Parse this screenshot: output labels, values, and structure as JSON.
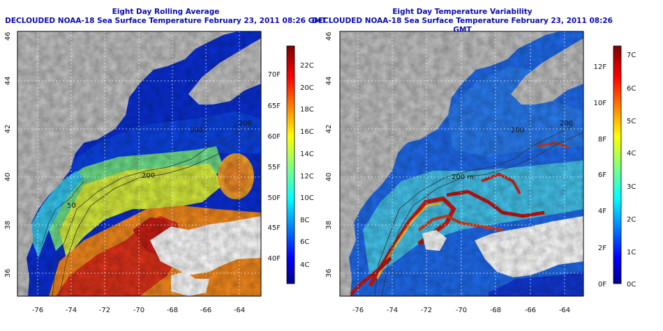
{
  "panels": [
    {
      "title_line1": "Eight Day Rolling Average",
      "title_line2": "DECLOUDED NOAA-18 Sea Surface Temperature February 23, 2011 08:26 GMT",
      "lon_ticks": [
        "-76",
        "-74",
        "-72",
        "-70",
        "-68",
        "-66",
        "-64"
      ],
      "lat_ticks": [
        "36",
        "38",
        "40",
        "42",
        "44",
        "46"
      ],
      "contour_labels": [
        "50",
        "200",
        "200",
        "200"
      ],
      "colorbar": {
        "celsius": [
          "4C",
          "6C",
          "8C",
          "10C",
          "12C",
          "14C",
          "16C",
          "18C",
          "20C",
          "22C"
        ],
        "fahrenheit": [
          "40F",
          "45F",
          "50F",
          "55F",
          "60F",
          "65F",
          "70F"
        ]
      }
    },
    {
      "title_line1": "Eight Day Temperature Variability",
      "title_line2": "DECLOUDED NOAA-18 Sea Surface Temperature February 23, 2011 08:26 GMT",
      "lon_ticks": [
        "-76",
        "-74",
        "-72",
        "-70",
        "-68",
        "-66",
        "-64"
      ],
      "lat_ticks": [
        "36",
        "38",
        "40",
        "42",
        "44",
        "46"
      ],
      "contour_labels": [
        "200 m",
        "200",
        "200"
      ],
      "colorbar": {
        "celsius": [
          "0C",
          "1C",
          "2C",
          "3C",
          "4C",
          "5C",
          "6C",
          "7C"
        ],
        "fahrenheit": [
          "0F",
          "2F",
          "4F",
          "6F",
          "8F",
          "10F",
          "12F"
        ]
      }
    }
  ],
  "colors": {
    "land": "#c4c4c4",
    "cloud": "#ffffff",
    "title": "#0b0bb0",
    "cold": "#1028c8",
    "hot": "#c81414"
  }
}
